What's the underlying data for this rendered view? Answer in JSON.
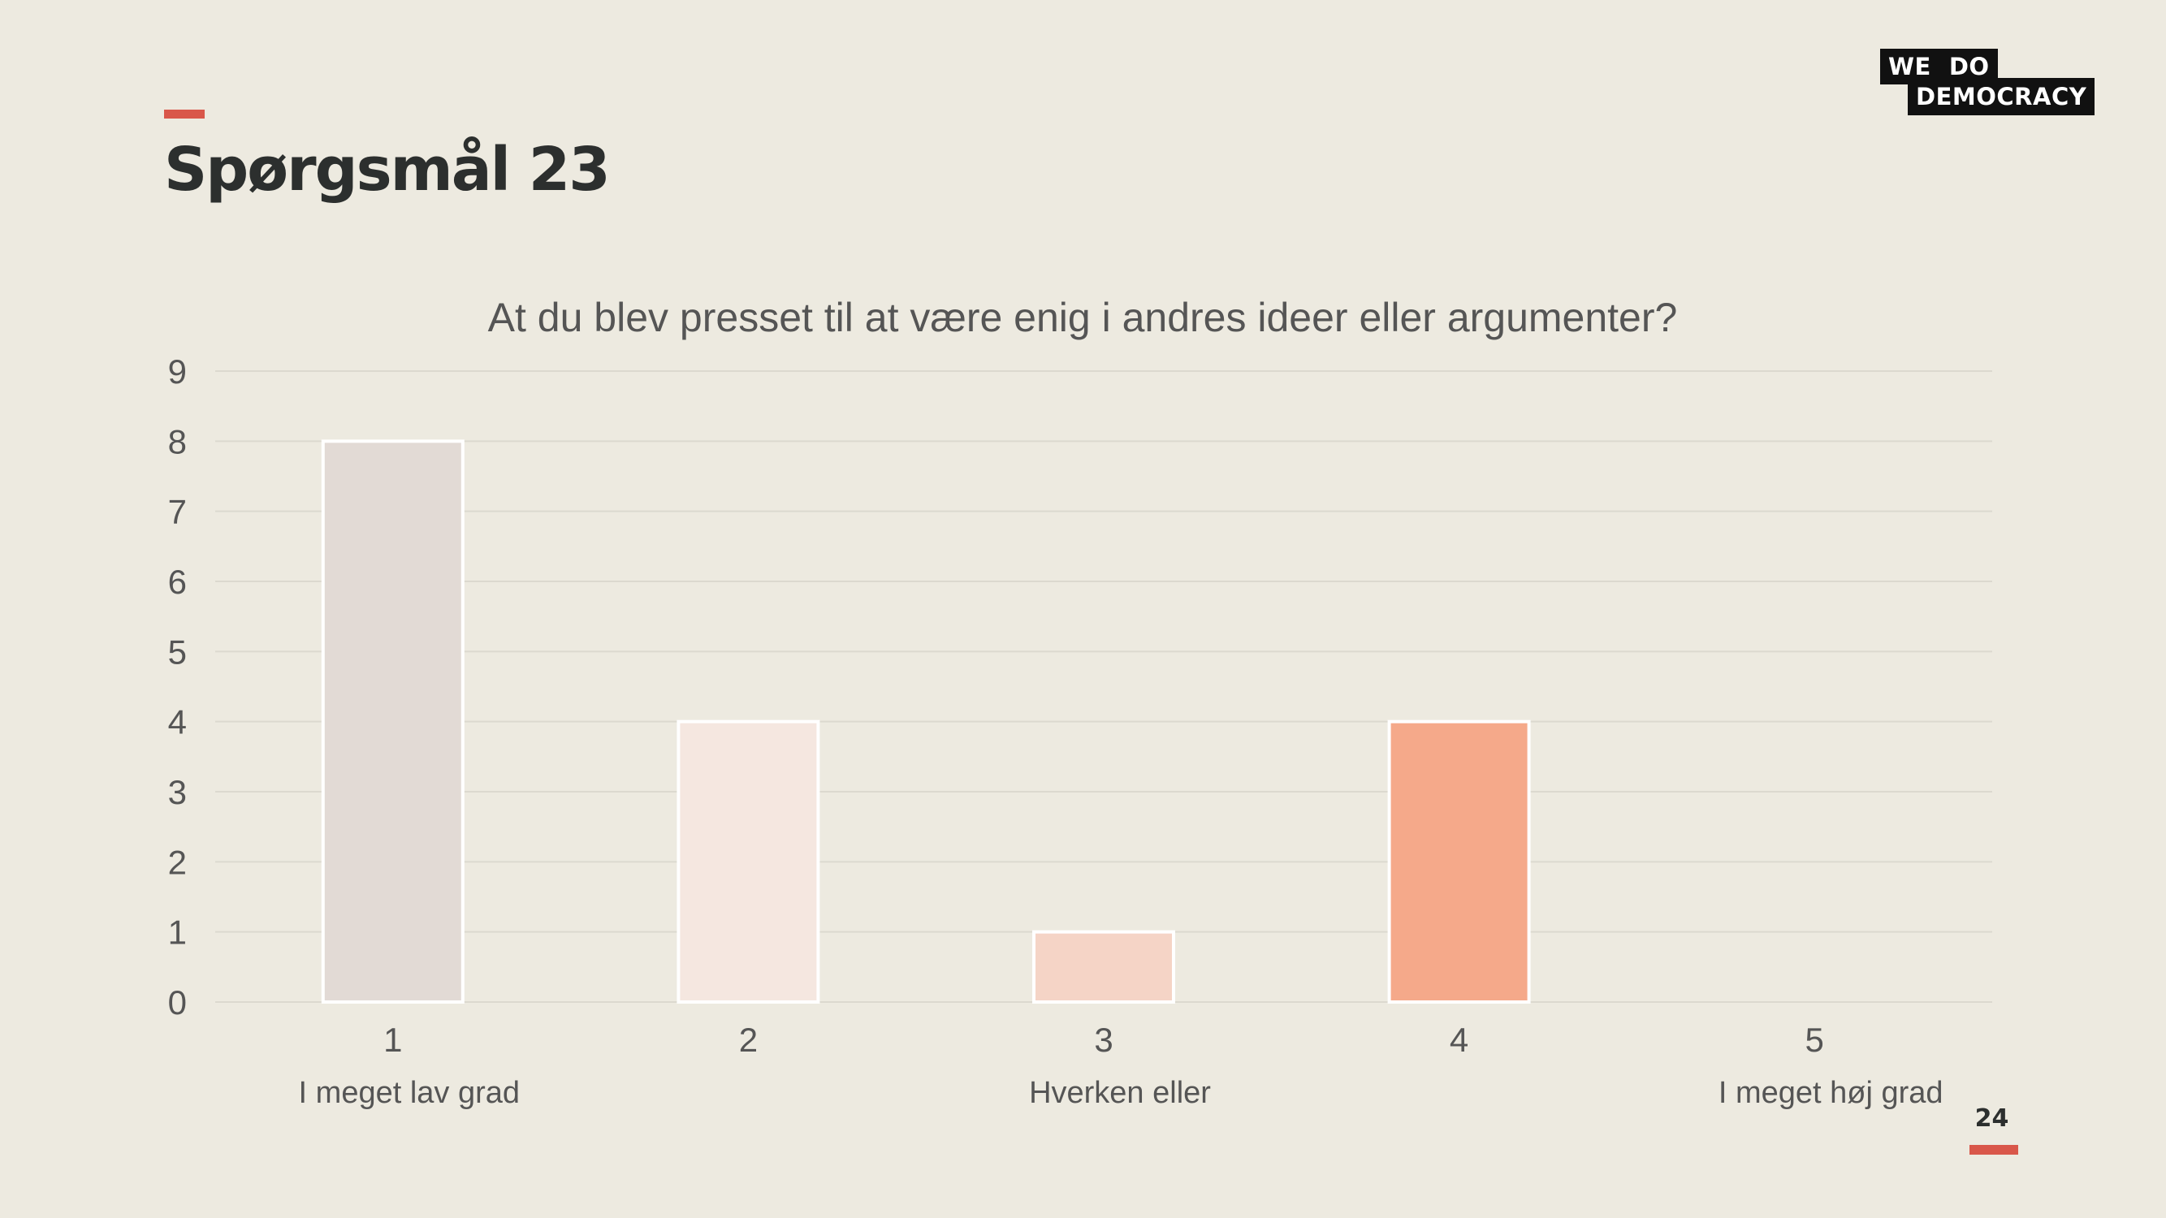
{
  "slide": {
    "title": "Spørgsmål 23",
    "page_number": "24"
  },
  "logo": {
    "line1_word1": "WE",
    "line1_word2": "DO",
    "line2": "DEMOCRACY"
  },
  "colors": {
    "background": "#edeae0",
    "accent": "#d9574a",
    "grid": "#dcd9cf"
  },
  "chart_data": {
    "type": "bar",
    "title": "At du blev presset til at være enig i andres ideer eller argumenter?",
    "categories": [
      "1",
      "2",
      "3",
      "4",
      "5"
    ],
    "category_sublabels": [
      "I meget lav grad",
      "",
      "Hverken eller",
      "",
      "I meget høj grad"
    ],
    "values": [
      8,
      4,
      1,
      4,
      0
    ],
    "bar_colors": [
      "#e2dad5",
      "#f5e7e0",
      "#f5d4c6",
      "#f5a98a",
      "#f0c0aa"
    ],
    "y_ticks": [
      "0",
      "1",
      "2",
      "3",
      "4",
      "5",
      "6",
      "7",
      "8",
      "9"
    ],
    "ylim": [
      0,
      9
    ],
    "grid": true,
    "legend": "none"
  }
}
